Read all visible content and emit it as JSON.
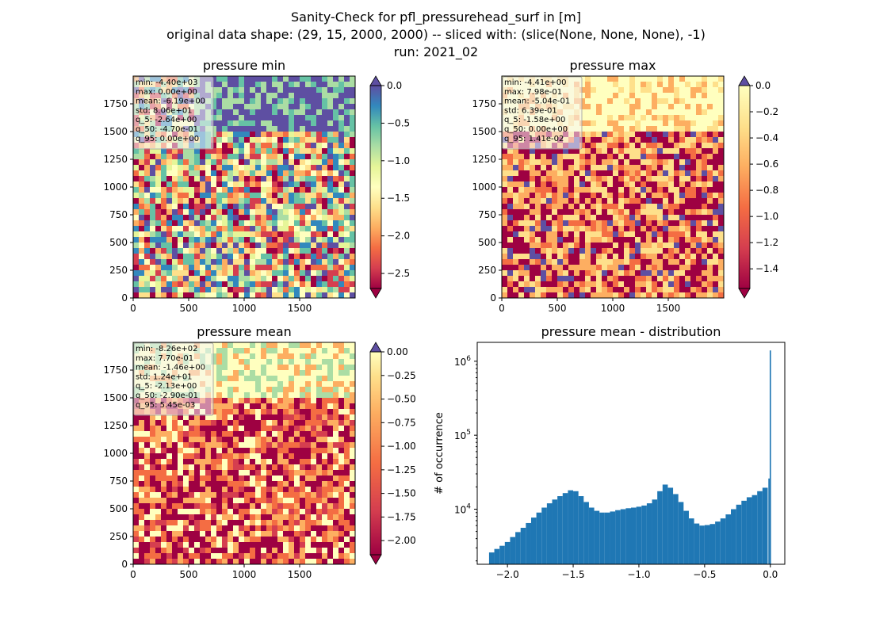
{
  "figure": {
    "title_lines": [
      "Sanity-Check for pfl_pressurehead_surf in [m]",
      "original data shape: (29, 15, 2000, 2000) -- sliced with: (slice(None, None, None), -1)",
      "run: 2021_02"
    ]
  },
  "chart_data": [
    {
      "type": "heatmap",
      "title": "pressure min",
      "xlim": [
        0,
        2000
      ],
      "ylim": [
        0,
        2000
      ],
      "xticks": [
        "0",
        "500",
        "1000",
        "1500"
      ],
      "yticks": [
        "0",
        "250",
        "500",
        "750",
        "1000",
        "1250",
        "1500",
        "1750"
      ],
      "colormap": "Spectral",
      "colorbar": {
        "range": [
          -2.7,
          0.0
        ],
        "ticks": [
          "0.0",
          "−0.5",
          "−1.0",
          "−1.5",
          "−2.0",
          "−2.5"
        ],
        "extend": "both"
      },
      "stats": [
        "min: -4.40e+03",
        "max: 0.00e+00",
        "mean: -6.19e+00",
        "std: 8.06e+01",
        "q_5: -2.64e+00",
        "q_50: -4.70e-01",
        "q_95: 0.00e+00"
      ]
    },
    {
      "type": "heatmap",
      "title": "pressure max",
      "xlim": [
        0,
        2000
      ],
      "ylim": [
        0,
        2000
      ],
      "xticks": [
        "0",
        "500",
        "1000",
        "1500"
      ],
      "yticks": [
        "0",
        "250",
        "500",
        "750",
        "1000",
        "1250",
        "1500",
        "1750"
      ],
      "colormap": "Spectral",
      "colorbar": {
        "range": [
          -1.55,
          0.0
        ],
        "ticks": [
          "0.0",
          "−0.2",
          "−0.4",
          "−0.6",
          "−0.8",
          "−1.0",
          "−1.2",
          "−1.4"
        ],
        "extend": "both"
      },
      "stats": [
        "min: -4.41e+00",
        "max: 7.98e-01",
        "mean: -5.04e-01",
        "std: 6.39e-01",
        "q_5: -1.58e+00",
        "q_50: 0.00e+00",
        "q_95: 1.41e-02"
      ]
    },
    {
      "type": "heatmap",
      "title": "pressure mean",
      "xlim": [
        0,
        2000
      ],
      "ylim": [
        0,
        2000
      ],
      "xticks": [
        "0",
        "500",
        "1000",
        "1500"
      ],
      "yticks": [
        "0",
        "250",
        "500",
        "750",
        "1000",
        "1250",
        "1500",
        "1750"
      ],
      "colormap": "Spectral",
      "colorbar": {
        "range": [
          -2.15,
          0.0
        ],
        "ticks": [
          "0.00",
          "−0.25",
          "−0.50",
          "−0.75",
          "−1.00",
          "−1.25",
          "−1.50",
          "−1.75",
          "−2.00"
        ],
        "extend": "both"
      },
      "stats": [
        "min: -8.26e+02",
        "max: 7.70e-01",
        "mean: -1.46e+00",
        "std: 1.24e+01",
        "q_5: -2.13e+00",
        "q_50: -2.90e-01",
        "q_95: 5.45e-03"
      ]
    },
    {
      "type": "bar",
      "title": "pressure mean - distribution",
      "xlabel": "",
      "ylabel": "# of occurrence",
      "xlim": [
        -2.23,
        0.11
      ],
      "ylim": [
        1800,
        1800000
      ],
      "yscale": "log",
      "xticks": [
        -2.0,
        -1.5,
        -1.0,
        -0.5,
        0.0
      ],
      "xticklabels": [
        "−2.0",
        "−1.5",
        "−1.0",
        "−0.5",
        "0.0"
      ],
      "yticks": [
        10000,
        100000,
        1000000
      ],
      "color": "#1f77b4",
      "bins": {
        "x": [
          -2.12,
          -2.08,
          -2.04,
          -2.0,
          -1.96,
          -1.92,
          -1.88,
          -1.84,
          -1.8,
          -1.76,
          -1.72,
          -1.68,
          -1.64,
          -1.6,
          -1.56,
          -1.52,
          -1.48,
          -1.44,
          -1.4,
          -1.36,
          -1.32,
          -1.28,
          -1.24,
          -1.2,
          -1.16,
          -1.12,
          -1.08,
          -1.04,
          -1.0,
          -0.96,
          -0.92,
          -0.88,
          -0.84,
          -0.8,
          -0.76,
          -0.72,
          -0.68,
          -0.64,
          -0.6,
          -0.56,
          -0.52,
          -0.48,
          -0.44,
          -0.4,
          -0.36,
          -0.32,
          -0.28,
          -0.24,
          -0.2,
          -0.16,
          -0.12,
          -0.08,
          -0.04,
          -0.01,
          0.0
        ],
        "y": [
          2600,
          2900,
          3200,
          3600,
          4200,
          4900,
          5600,
          6500,
          7700,
          9000,
          10500,
          12000,
          13500,
          15000,
          16500,
          18000,
          17500,
          15000,
          12500,
          10500,
          9500,
          9000,
          9000,
          9300,
          9700,
          10000,
          10300,
          10500,
          10800,
          11200,
          12000,
          13500,
          17500,
          21500,
          19500,
          16000,
          12500,
          9500,
          7500,
          6400,
          6000,
          6100,
          6300,
          6800,
          7500,
          8500,
          10000,
          11500,
          13000,
          14500,
          15500,
          17500,
          19500,
          26000,
          1400000
        ]
      }
    }
  ]
}
